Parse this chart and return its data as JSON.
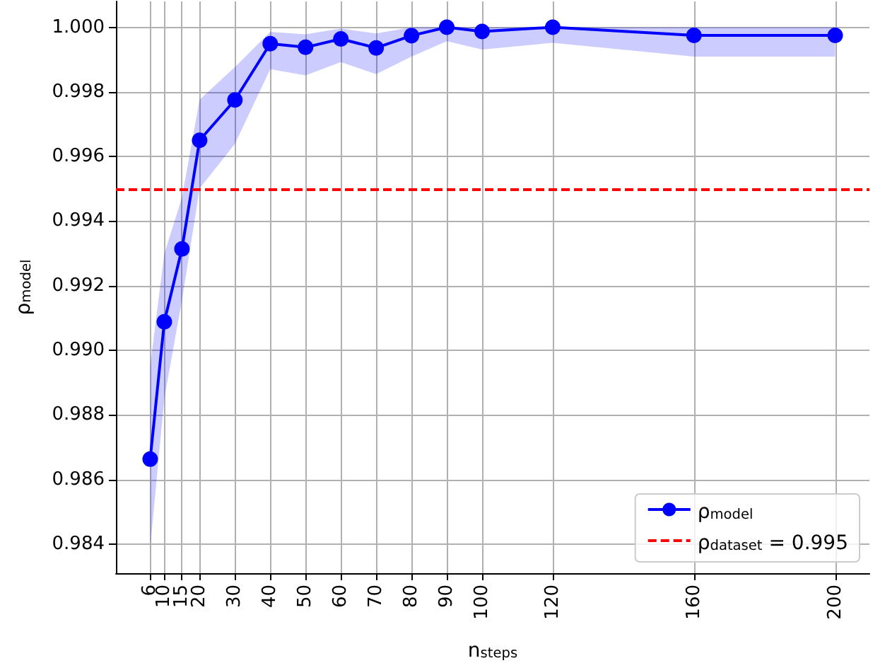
{
  "chart_data": {
    "type": "line",
    "xlabel": "n$_{steps}$",
    "ylabel": "ρ$_{model}$",
    "x": [
      6,
      10,
      15,
      20,
      30,
      40,
      50,
      60,
      70,
      80,
      90,
      100,
      120,
      160,
      200
    ],
    "series": [
      {
        "name": "ρ$_{model}$",
        "color": "#0000ff",
        "values": [
          0.98663,
          0.99088,
          0.99314,
          0.9965,
          0.99775,
          0.99949,
          0.99938,
          0.99964,
          0.99936,
          0.99974,
          1.0,
          0.99987,
          1.0,
          0.99975,
          0.99975
        ],
        "lower": [
          0.98389,
          0.98851,
          0.99155,
          0.99501,
          0.99639,
          0.9987,
          0.99851,
          0.99892,
          0.99855,
          0.99909,
          0.99957,
          0.99931,
          0.99952,
          0.99909,
          0.99909
        ],
        "upper": [
          0.98952,
          0.99299,
          0.99473,
          0.99776,
          0.99877,
          0.99986,
          0.99978,
          0.99996,
          0.99981,
          1.0,
          1.0,
          1.0,
          1.0,
          1.0,
          1.0
        ]
      }
    ],
    "xlim": [
      -3.7,
      209.7
    ],
    "xticks": [
      6,
      10,
      15,
      20,
      30,
      40,
      50,
      60,
      70,
      80,
      90,
      100,
      120,
      160,
      200
    ],
    "ylim": [
      0.9831,
      1.0008
    ],
    "yticks": [
      {
        "value": 0.984,
        "label": "0.984"
      },
      {
        "value": 0.986,
        "label": "0.986"
      },
      {
        "value": 0.988,
        "label": "0.988"
      },
      {
        "value": 0.99,
        "label": "0.990"
      },
      {
        "value": 0.992,
        "label": "0.992"
      },
      {
        "value": 0.994,
        "label": "0.994"
      },
      {
        "value": 0.996,
        "label": "0.996"
      },
      {
        "value": 0.998,
        "label": "0.998"
      },
      {
        "value": 1.0,
        "label": "1.000"
      }
    ],
    "ref_lines": [
      {
        "axis": "y",
        "value": 0.995,
        "label": "ρ$_{dataset}$ = 0.995",
        "color": "#ff0000",
        "line_style": "dashed"
      }
    ],
    "grid": true,
    "legend": "bottom right",
    "marker": "circle",
    "line_style": "solid"
  }
}
